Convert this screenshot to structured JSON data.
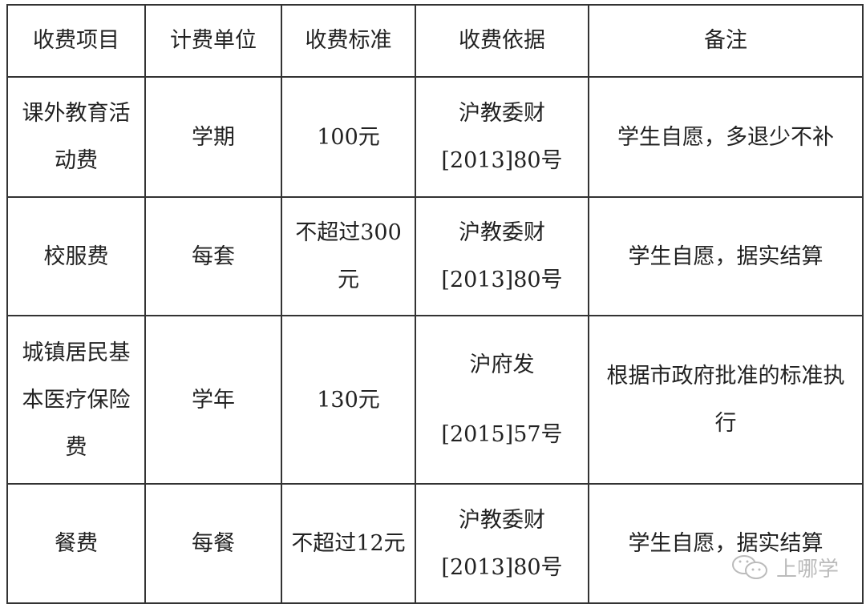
{
  "table": {
    "headers": [
      "收费项目",
      "计费单位",
      "收费标准",
      "收费依据",
      "备注"
    ],
    "rows": [
      [
        [
          "课外教育活",
          "动费"
        ],
        [
          "学期"
        ],
        [
          "100元"
        ],
        [
          "沪教委财",
          "[2013]80号"
        ],
        [
          "学生自愿，多退少不补"
        ]
      ],
      [
        [
          "校服费"
        ],
        [
          "每套"
        ],
        [
          "不超过300",
          "元"
        ],
        [
          "沪教委财",
          "[2013]80号"
        ],
        [
          "学生自愿，据实结算"
        ]
      ],
      [
        [
          "城镇居民基",
          "本医疗保险",
          "费"
        ],
        [
          "学年"
        ],
        [
          "130元"
        ],
        [
          "沪府发",
          "[2015]57号"
        ],
        [
          "根据市政府批准的标准执",
          "行"
        ]
      ],
      [
        [
          "餐费"
        ],
        [
          "每餐"
        ],
        [
          "不超过12元"
        ],
        [
          "沪教委财",
          "[2013]80号"
        ],
        [
          "学生自愿，据实结算"
        ]
      ]
    ]
  },
  "watermark": {
    "icon": "wechat-icon",
    "text": "上哪学"
  }
}
